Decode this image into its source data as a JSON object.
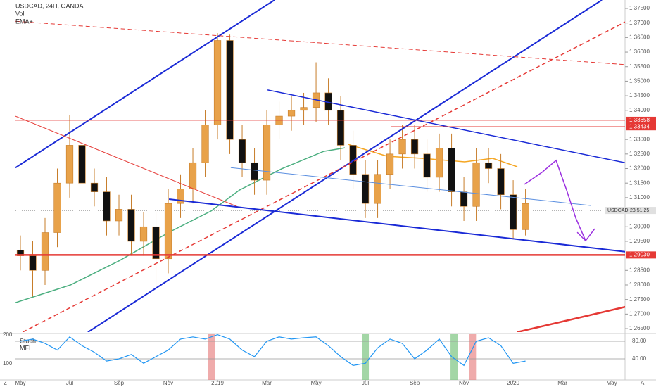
{
  "chart_data": {
    "type": "candlestick",
    "title": "USDCAD, 24H, OANDA",
    "indicators": [
      "Vol",
      "EMA+"
    ],
    "xlim": [
      -0.2,
      24.54
    ],
    "ylim": [
      1.2638,
      1.3779
    ],
    "xticks": [
      {
        "value": 0,
        "label": "May"
      },
      {
        "value": 2,
        "label": "Jul"
      },
      {
        "value": 4,
        "label": "Sep"
      },
      {
        "value": 6,
        "label": "Nov"
      },
      {
        "value": 8,
        "label": "2019"
      },
      {
        "value": 10,
        "label": "Mar"
      },
      {
        "value": 12,
        "label": "May"
      },
      {
        "value": 14,
        "label": "Jul"
      },
      {
        "value": 16,
        "label": "Sep"
      },
      {
        "value": 18,
        "label": "Nov"
      },
      {
        "value": 20,
        "label": "2020"
      },
      {
        "value": 22,
        "label": "Mar"
      },
      {
        "value": 24,
        "label": "May"
      }
    ],
    "yticks": [
      {
        "value": 1.265,
        "label": "1.26500"
      },
      {
        "value": 1.27,
        "label": "1.27000"
      },
      {
        "value": 1.275,
        "label": "1.27500"
      },
      {
        "value": 1.28,
        "label": "1.28000"
      },
      {
        "value": 1.285,
        "label": "1.28500"
      },
      {
        "value": 1.295,
        "label": "1.29500"
      },
      {
        "value": 1.3,
        "label": "1.30000"
      },
      {
        "value": 1.31,
        "label": "1.31000"
      },
      {
        "value": 1.315,
        "label": "1.31500"
      },
      {
        "value": 1.32,
        "label": "1.32000"
      },
      {
        "value": 1.325,
        "label": "1.32500"
      },
      {
        "value": 1.33,
        "label": "1.33000"
      },
      {
        "value": 1.34,
        "label": "1.34000"
      },
      {
        "value": 1.345,
        "label": "1.34500"
      },
      {
        "value": 1.35,
        "label": "1.35000"
      },
      {
        "value": 1.355,
        "label": "1.35500"
      },
      {
        "value": 1.36,
        "label": "1.36000"
      },
      {
        "value": 1.365,
        "label": "1.36500"
      },
      {
        "value": 1.37,
        "label": "1.37000"
      },
      {
        "value": 1.375,
        "label": "1.37500"
      }
    ],
    "grid": false,
    "series": [
      {
        "name": "USDCAD",
        "up_color": "#e8a24a",
        "down_color": "#111111",
        "x": [
          0,
          0.5,
          1,
          1.5,
          2,
          2.5,
          3,
          3.5,
          4,
          4.5,
          5,
          5.5,
          6,
          6.5,
          7,
          7.5,
          8,
          8.5,
          9,
          9.5,
          10,
          10.5,
          11,
          11.5,
          12,
          12.5,
          13,
          13.5,
          14,
          14.5,
          15,
          15.5,
          16,
          16.5,
          17,
          17.5,
          18,
          18.5,
          19,
          19.5,
          20,
          20.5
        ],
        "open": [
          1.292,
          1.29,
          1.285,
          1.298,
          1.315,
          1.328,
          1.315,
          1.312,
          1.302,
          1.306,
          1.295,
          1.3,
          1.289,
          1.308,
          1.313,
          1.322,
          1.335,
          1.364,
          1.33,
          1.322,
          1.316,
          1.335,
          1.338,
          1.34,
          1.341,
          1.346,
          1.34,
          1.328,
          1.318,
          1.308,
          1.318,
          1.325,
          1.33,
          1.325,
          1.317,
          1.327,
          1.312,
          1.307,
          1.322,
          1.32,
          1.311,
          1.299
        ],
        "high": [
          1.297,
          1.295,
          1.303,
          1.32,
          1.3385,
          1.333,
          1.32,
          1.317,
          1.311,
          1.311,
          1.305,
          1.305,
          1.313,
          1.318,
          1.327,
          1.34,
          1.3665,
          1.366,
          1.335,
          1.327,
          1.34,
          1.343,
          1.345,
          1.346,
          1.3565,
          1.351,
          1.345,
          1.333,
          1.323,
          1.323,
          1.33,
          1.335,
          1.335,
          1.33,
          1.332,
          1.332,
          1.317,
          1.327,
          1.327,
          1.325,
          1.316,
          1.313
        ],
        "low": [
          1.285,
          1.276,
          1.28,
          1.293,
          1.31,
          1.31,
          1.307,
          1.297,
          1.297,
          1.29,
          1.29,
          1.279,
          1.284,
          1.303,
          1.308,
          1.317,
          1.33,
          1.325,
          1.317,
          1.311,
          1.311,
          1.33,
          1.333,
          1.335,
          1.336,
          1.335,
          1.323,
          1.313,
          1.303,
          1.303,
          1.313,
          1.32,
          1.32,
          1.312,
          1.312,
          1.307,
          1.302,
          1.302,
          1.315,
          1.306,
          1.296,
          1.297
        ],
        "close": [
          1.29,
          1.285,
          1.298,
          1.315,
          1.328,
          1.315,
          1.312,
          1.302,
          1.306,
          1.295,
          1.3,
          1.289,
          1.308,
          1.313,
          1.322,
          1.335,
          1.364,
          1.33,
          1.322,
          1.316,
          1.335,
          1.338,
          1.34,
          1.341,
          1.346,
          1.34,
          1.328,
          1.318,
          1.308,
          1.318,
          1.325,
          1.33,
          1.325,
          1.317,
          1.327,
          1.312,
          1.307,
          1.322,
          1.32,
          1.311,
          1.299,
          1.308
        ]
      }
    ],
    "drawings": [
      {
        "color": "#4caf80",
        "width": 1.5,
        "points": [
          [
            -0.2,
            1.2739
          ],
          [
            2.03,
            1.28
          ],
          [
            4.03,
            1.2884
          ],
          [
            6.03,
            1.2981
          ],
          [
            7.74,
            1.3054
          ],
          [
            8.89,
            1.3126
          ],
          [
            10.6,
            1.3199
          ],
          [
            12.31,
            1.3259
          ],
          [
            13.17,
            1.3271
          ]
        ]
      },
      {
        "color": "#f5a623",
        "width": 1.5,
        "points": [
          [
            13.31,
            1.3283
          ],
          [
            14.89,
            1.3242
          ],
          [
            16.31,
            1.3235
          ],
          [
            18.03,
            1.3223
          ],
          [
            19.17,
            1.3235
          ],
          [
            20.17,
            1.3206
          ]
        ]
      },
      {
        "color": "#1a2ad6",
        "width": 2,
        "points": [
          [
            -0.2,
            1.3203
          ],
          [
            10.31,
            1.3779
          ]
        ]
      },
      {
        "color": "#1a2ad6",
        "width": 2,
        "points": [
          [
            2.74,
            1.2638
          ],
          [
            23.6,
            1.3779
          ]
        ]
      },
      {
        "color": "#e53935",
        "width": 1.5,
        "dash": true,
        "points": [
          [
            0.09,
            1.2638
          ],
          [
            24.6,
            1.3706
          ]
        ]
      },
      {
        "color": "#e53935",
        "width": 1,
        "dash": true,
        "points": [
          [
            -0.2,
            1.3706
          ],
          [
            24.54,
            1.3557
          ]
        ]
      },
      {
        "color": "#e53935",
        "width": 1,
        "points": [
          [
            -0.2,
            1.338
          ],
          [
            8.89,
            1.3066
          ]
        ]
      },
      {
        "color": "#1a2ad6",
        "width": 1.5,
        "points": [
          [
            10.03,
            1.347
          ],
          [
            24.66,
            1.3218
          ]
        ]
      },
      {
        "color": "#1a2ad6",
        "width": 2,
        "points": [
          [
            6.03,
            1.3095
          ],
          [
            24.66,
            1.2913
          ]
        ]
      },
      {
        "color": "#5b8fe0",
        "width": 1,
        "points": [
          [
            8.54,
            1.3203
          ],
          [
            23.17,
            1.3073
          ]
        ]
      },
      {
        "color": "#e53935",
        "width": 1,
        "points": [
          [
            -0.2,
            1.33658
          ],
          [
            24.54,
            1.33658
          ]
        ]
      },
      {
        "color": "#e53935",
        "width": 1.5,
        "points": [
          [
            15.03,
            1.33434
          ],
          [
            24.54,
            1.33434
          ]
        ]
      },
      {
        "color": "#e53935",
        "width": 2.5,
        "points": [
          [
            -0.2,
            1.2903
          ],
          [
            24.54,
            1.2903
          ]
        ]
      },
      {
        "color": "#e53935",
        "width": 2.5,
        "points": [
          [
            20.17,
            1.2638
          ],
          [
            24.66,
            1.2727
          ]
        ]
      },
      {
        "color": "#9b30e0",
        "width": 1.5,
        "points": [
          [
            20.46,
            1.3146
          ],
          [
            21.17,
            1.3187
          ],
          [
            21.74,
            1.3228
          ],
          [
            22.17,
            1.3126
          ],
          [
            22.54,
            1.303
          ],
          [
            22.94,
            1.2952
          ]
        ]
      },
      {
        "color": "#9b30e0",
        "width": 1.5,
        "points": [
          [
            22.6,
            1.2981
          ],
          [
            22.94,
            1.2952
          ],
          [
            23.31,
            1.2993
          ]
        ]
      }
    ],
    "price_tags": [
      {
        "value": 1.33658,
        "color": "#e53935"
      },
      {
        "value": 1.33434,
        "color": "#e53935"
      },
      {
        "value": {
          "value": 1.2903,
          "label": "1.29030"
        },
        "color": "#e53935"
      }
    ],
    "symbol_tag": "USDCAD",
    "countdown": "23:51:25",
    "last_price": 1.3056,
    "lower_panel": {
      "labels": [
        "Stoch",
        "MFI"
      ],
      "ylim": [
        -8,
        96
      ],
      "yticks": [
        {
          "value": 80,
          "label": "80.00"
        },
        {
          "value": 40,
          "label": "40.00"
        }
      ],
      "left_ylim": [
        44,
        202.4
      ],
      "left_yticks": [
        200,
        100
      ],
      "color": "#2196f3",
      "values": [
        80,
        85,
        75,
        60,
        90,
        70,
        55,
        35,
        40,
        50,
        30,
        45,
        60,
        85,
        90,
        85,
        95,
        85,
        60,
        45,
        80,
        90,
        85,
        88,
        90,
        70,
        45,
        25,
        30,
        65,
        85,
        75,
        40,
        60,
        85,
        45,
        25,
        80,
        88,
        70,
        30,
        35
      ],
      "highlights": [
        {
          "x": 7.75,
          "color": "#e57373"
        },
        {
          "x": 14.0,
          "color": "#66bb6a"
        },
        {
          "x": 17.6,
          "color": "#66bb6a"
        },
        {
          "x": 18.35,
          "color": "#e57373"
        }
      ]
    },
    "corner_left": "Z",
    "corner_right": "A"
  }
}
